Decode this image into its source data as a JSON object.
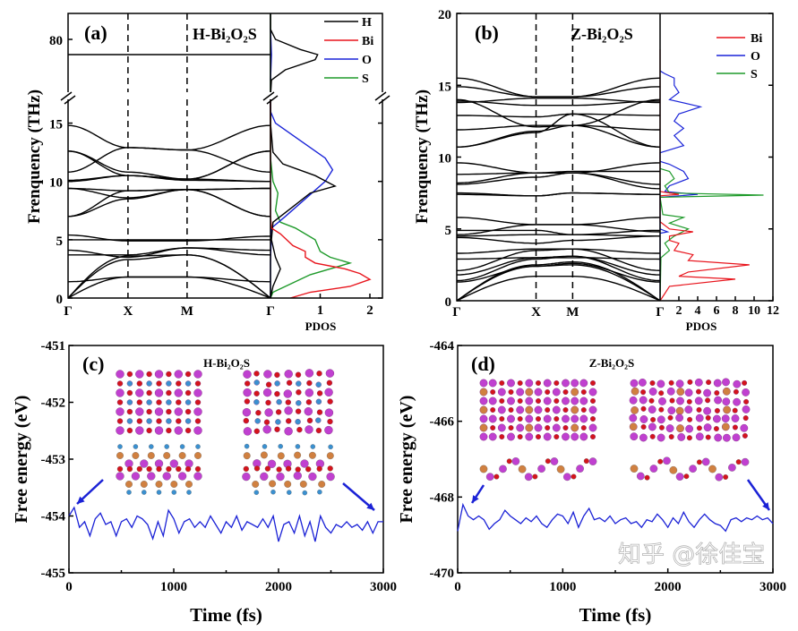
{
  "watermark": "知乎 @徐佳宝",
  "colors": {
    "H": "#000000",
    "Bi": "#e8141c",
    "O": "#1a24d8",
    "S": "#1e9a2a",
    "md": "#1b22d6",
    "atom_bi": "#c040d0",
    "atom_o": "#d4141c",
    "atom_s": "#d08040",
    "atom_h": "#3a90d0"
  },
  "chart_data": [
    {
      "panel": "(a)",
      "type": "line",
      "title": "H-Bi₂O₂S",
      "ylabel": "Frenquency (THz)",
      "xlabel_pdos": "PDOS",
      "kpath_labels": [
        "Γ",
        "X",
        "M",
        "Γ"
      ],
      "kpath_positions": [
        0,
        0.296,
        0.588,
        1
      ],
      "ylim_lower": [
        0,
        17.3
      ],
      "ylim_upper": [
        68.6,
        85
      ],
      "yticks": [
        0,
        5,
        10,
        15,
        80
      ],
      "pdos_xticks": [
        1,
        2
      ],
      "pdos_xlim": [
        0,
        2.25
      ],
      "legend": [
        "H",
        "Bi",
        "O",
        "S"
      ],
      "legend_placement": "top-right",
      "bands": [
        [
          0,
          1.8,
          1.8,
          0
        ],
        [
          0,
          3.3,
          3.7,
          0
        ],
        [
          0,
          3.6,
          3.7,
          0
        ],
        [
          1.4,
          1.8,
          1.8,
          1.4
        ],
        [
          3.7,
          3.7,
          4.3,
          3.7
        ],
        [
          4.1,
          3.5,
          4.3,
          4.1
        ],
        [
          5.0,
          5.0,
          5.0,
          5.0
        ],
        [
          5.4,
          4.9,
          4.9,
          5.3
        ],
        [
          7.0,
          8.5,
          9.3,
          7.0
        ],
        [
          7.0,
          9.2,
          9.3,
          7.0
        ],
        [
          9.4,
          9.2,
          9.3,
          9.4
        ],
        [
          9.4,
          8.6,
          9.3,
          9.4
        ],
        [
          10.0,
          10.5,
          10.2,
          10.0
        ],
        [
          10.1,
          10.5,
          10.1,
          10.0
        ],
        [
          10.8,
          12.9,
          12.7,
          10.8
        ],
        [
          12.6,
          10.5,
          10.2,
          12.6
        ],
        [
          12.6,
          10.8,
          10.2,
          12.6
        ],
        [
          14.8,
          12.9,
          12.7,
          14.8
        ],
        [
          77,
          77,
          77,
          77
        ]
      ],
      "pdos": {
        "H": [
          [
            0,
            0
          ],
          [
            1,
            0.05
          ],
          [
            2.5,
            0.2
          ],
          [
            3.5,
            0.1
          ],
          [
            5,
            0.02
          ],
          [
            6.5,
            0.05
          ],
          [
            8,
            0.5
          ],
          [
            9,
            0.8
          ],
          [
            9.6,
            1.3
          ],
          [
            10.5,
            0.9
          ],
          [
            11.5,
            0.25
          ],
          [
            12.5,
            0.05
          ],
          [
            15,
            0
          ],
          [
            17.3,
            0
          ],
          null,
          [
            68.6,
            0
          ],
          [
            72,
            0.02
          ],
          [
            74,
            0.3
          ],
          [
            76,
            0.9
          ],
          [
            77,
            0.95
          ],
          [
            78,
            0.6
          ],
          [
            80,
            0.1
          ],
          [
            82,
            0
          ],
          [
            85,
            0
          ]
        ],
        "Bi": [
          [
            0,
            0.4
          ],
          [
            0.5,
            0.8
          ],
          [
            1,
            1.6
          ],
          [
            1.6,
            2.0
          ],
          [
            2.1,
            1.8
          ],
          [
            2.5,
            1.5
          ],
          [
            3,
            0.9
          ],
          [
            3.5,
            0.7
          ],
          [
            4,
            0.7
          ],
          [
            4.5,
            0.45
          ],
          [
            5.5,
            0.2
          ],
          [
            6,
            0.02
          ],
          [
            7,
            0
          ],
          [
            17.3,
            0
          ]
        ],
        "O": [
          [
            0,
            0
          ],
          [
            3,
            0
          ],
          [
            6,
            0.02
          ],
          [
            7,
            0.3
          ],
          [
            8.5,
            0.7
          ],
          [
            10,
            1.1
          ],
          [
            11,
            1.25
          ],
          [
            12,
            1.1
          ],
          [
            13.5,
            0.6
          ],
          [
            15,
            0.1
          ],
          [
            16,
            0
          ],
          [
            17.3,
            0
          ],
          null,
          [
            72,
            0
          ],
          [
            77,
            0.02
          ],
          [
            82,
            0
          ]
        ],
        "S": [
          [
            0,
            0
          ],
          [
            0.5,
            0.05
          ],
          [
            1,
            0.3
          ],
          [
            2,
            0.8
          ],
          [
            3,
            1.6
          ],
          [
            3.5,
            1.2
          ],
          [
            4,
            1.0
          ],
          [
            5,
            0.9
          ],
          [
            6,
            0.5
          ],
          [
            6.5,
            0.2
          ],
          [
            7.5,
            0.1
          ],
          [
            9,
            0.15
          ],
          [
            10,
            0.05
          ],
          [
            12,
            0
          ],
          [
            17.3,
            0
          ],
          null,
          [
            68.6,
            0
          ],
          [
            85,
            0
          ]
        ]
      }
    },
    {
      "panel": "(b)",
      "type": "line",
      "title": "Z-Bi₂O₂S",
      "ylabel": "Frenquency (THz)",
      "xlabel_pdos": "PDOS",
      "kpath_labels": [
        "Γ",
        "X",
        "M",
        "Γ"
      ],
      "kpath_positions": [
        0,
        0.39,
        0.57,
        1
      ],
      "ylim": [
        0,
        20
      ],
      "yticks": [
        0,
        5,
        10,
        15,
        20
      ],
      "pdos_xticks": [
        2,
        4,
        6,
        8,
        10,
        12
      ],
      "pdos_xlim": [
        0,
        12
      ],
      "legend": [
        "Bi",
        "O",
        "S"
      ],
      "legend_placement": "top-right",
      "bands": [
        [
          0,
          1.7,
          1.7,
          0
        ],
        [
          0,
          2.4,
          2.5,
          0
        ],
        [
          0,
          2.5,
          2.7,
          0
        ],
        [
          1.3,
          2.4,
          2.6,
          1.3
        ],
        [
          1.4,
          2.9,
          3.1,
          1.4
        ],
        [
          1.8,
          3.0,
          3.1,
          1.8
        ],
        [
          2.1,
          3.5,
          3.6,
          2.1
        ],
        [
          2.9,
          3.0,
          3.0,
          2.9
        ],
        [
          3.3,
          3.6,
          3.6,
          3.3
        ],
        [
          4.4,
          4.0,
          4.2,
          4.5
        ],
        [
          4.5,
          4.6,
          4.6,
          4.5
        ],
        [
          4.6,
          5.3,
          5.3,
          4.8
        ],
        [
          5.8,
          5.3,
          5.3,
          5.8
        ],
        [
          4.9,
          4.9,
          4.6,
          4.9
        ],
        [
          7.4,
          7.3,
          7.5,
          7.4
        ],
        [
          7.5,
          7.3,
          7.5,
          7.4
        ],
        [
          8.1,
          8.6,
          8.9,
          7.8
        ],
        [
          8.2,
          8.9,
          8.9,
          8.1
        ],
        [
          8.8,
          8.9,
          9.0,
          9.0
        ],
        [
          9.6,
          8.9,
          8.9,
          9.6
        ],
        [
          10.7,
          11.8,
          12.2,
          10.7
        ],
        [
          10.7,
          11.7,
          13.0,
          10.7
        ],
        [
          11.9,
          12.2,
          12.2,
          11.9
        ],
        [
          12.9,
          12.8,
          13.0,
          12.9
        ],
        [
          13.9,
          13.6,
          13.6,
          13.9
        ],
        [
          14.0,
          12.1,
          12.2,
          14.0
        ],
        [
          13.8,
          14.1,
          14.1,
          13.8
        ],
        [
          14.9,
          14.2,
          14.2,
          14.9
        ],
        [
          15.5,
          14.2,
          14.2,
          15.5
        ]
      ],
      "pdos": {
        "Bi": [
          [
            0,
            0
          ],
          [
            0.5,
            0.5
          ],
          [
            1,
            1
          ],
          [
            1.5,
            8
          ],
          [
            1.7,
            2
          ],
          [
            2,
            3
          ],
          [
            2.5,
            9.5
          ],
          [
            2.8,
            3
          ],
          [
            3.2,
            3.5
          ],
          [
            3.5,
            1.5
          ],
          [
            4,
            2
          ],
          [
            4.2,
            1
          ],
          [
            4.5,
            1
          ],
          [
            4.8,
            3.5
          ],
          [
            5,
            1
          ],
          [
            5.5,
            0
          ],
          [
            7.3,
            0
          ],
          [
            7.4,
            2
          ],
          [
            7.6,
            0
          ],
          [
            17.5,
            0
          ]
        ],
        "O": [
          [
            0,
            0
          ],
          [
            4.7,
            0
          ],
          [
            4.8,
            0.8
          ],
          [
            5,
            0
          ],
          [
            7.2,
            0
          ],
          [
            7.4,
            4
          ],
          [
            7.6,
            0.5
          ],
          [
            8,
            1
          ],
          [
            8.5,
            3
          ],
          [
            9,
            2.5
          ],
          [
            9.5,
            1
          ],
          [
            9.7,
            0
          ],
          [
            10.3,
            0
          ],
          [
            10.8,
            2.5
          ],
          [
            11.5,
            1.5
          ],
          [
            12,
            2.5
          ],
          [
            12.5,
            1.5
          ],
          [
            13,
            2
          ],
          [
            13.5,
            4.3
          ],
          [
            14,
            1
          ],
          [
            14.5,
            2
          ],
          [
            15,
            1.5
          ],
          [
            15.5,
            1.5
          ],
          [
            15.8,
            0.5
          ],
          [
            16,
            0
          ]
        ],
        "S": [
          [
            0,
            0
          ],
          [
            3,
            0.1
          ],
          [
            3.5,
            1
          ],
          [
            4,
            0.5
          ],
          [
            4.5,
            1.5
          ],
          [
            5,
            3
          ],
          [
            5.4,
            1
          ],
          [
            5.8,
            2.5
          ],
          [
            6,
            0.3
          ],
          [
            7.2,
            0
          ],
          [
            7.35,
            11
          ],
          [
            7.5,
            1
          ],
          [
            8,
            0.5
          ],
          [
            8.5,
            1.5
          ],
          [
            9,
            1
          ],
          [
            9.2,
            0
          ]
        ]
      }
    },
    {
      "panel": "(c)",
      "type": "line",
      "title": "H-Bi₂O₂S",
      "xlabel": "Time (fs)",
      "ylabel": "Free energy (eV)",
      "xlim": [
        0,
        3000
      ],
      "ylim": [
        -455,
        -451
      ],
      "xticks": [
        0,
        1000,
        2000,
        3000
      ],
      "yticks": [
        -455,
        -454,
        -453,
        -452,
        -451
      ],
      "x_step": 50,
      "values": [
        -454.0,
        -453.85,
        -454.2,
        -454.1,
        -454.35,
        -454.05,
        -453.95,
        -454.15,
        -454.1,
        -454.35,
        -454.1,
        -454.05,
        -454.2,
        -454.0,
        -454.05,
        -454.15,
        -454.4,
        -454.1,
        -454.35,
        -453.9,
        -454.05,
        -454.3,
        -454.1,
        -454.05,
        -454.2,
        -454.1,
        -454.2,
        -454.0,
        -454.15,
        -454.3,
        -454.1,
        -454.2,
        -454.0,
        -454.25,
        -454.1,
        -454.15,
        -454.2,
        -454.05,
        -454.2,
        -454.0,
        -454.45,
        -454.15,
        -454.1,
        -454.3,
        -454.0,
        -454.35,
        -454.1,
        -454.45,
        -454.0,
        -454.2,
        -454.3,
        -454.15,
        -454.2,
        -454.1,
        -454.2,
        -454.15,
        -454.25,
        -454.1,
        -454.3,
        -454.1,
        -454.1
      ]
    },
    {
      "panel": "(d)",
      "type": "line",
      "title": "Z-Bi₂O₂S",
      "xlabel": "Time (fs)",
      "ylabel": "Free energy (eV)",
      "xlim": [
        0,
        3000
      ],
      "ylim": [
        -470,
        -464
      ],
      "xticks": [
        0,
        1000,
        2000,
        3000
      ],
      "yticks": [
        -470,
        -468,
        -466,
        -464
      ],
      "x_step": 50,
      "values": [
        -468.9,
        -468.2,
        -468.5,
        -468.6,
        -468.5,
        -468.6,
        -468.85,
        -468.7,
        -468.6,
        -468.35,
        -468.5,
        -468.6,
        -468.7,
        -468.55,
        -468.65,
        -468.5,
        -468.7,
        -468.8,
        -468.6,
        -468.45,
        -468.5,
        -468.7,
        -468.4,
        -468.8,
        -468.5,
        -468.3,
        -468.6,
        -468.55,
        -468.65,
        -468.5,
        -468.7,
        -468.6,
        -468.55,
        -468.7,
        -468.65,
        -468.8,
        -468.6,
        -468.65,
        -468.45,
        -468.6,
        -468.8,
        -468.55,
        -468.7,
        -468.4,
        -468.65,
        -468.8,
        -468.6,
        -468.45,
        -468.6,
        -468.7,
        -468.75,
        -468.9,
        -468.6,
        -468.55,
        -468.65,
        -468.55,
        -468.6,
        -468.5,
        -468.6,
        -468.55,
        -468.7
      ]
    }
  ]
}
